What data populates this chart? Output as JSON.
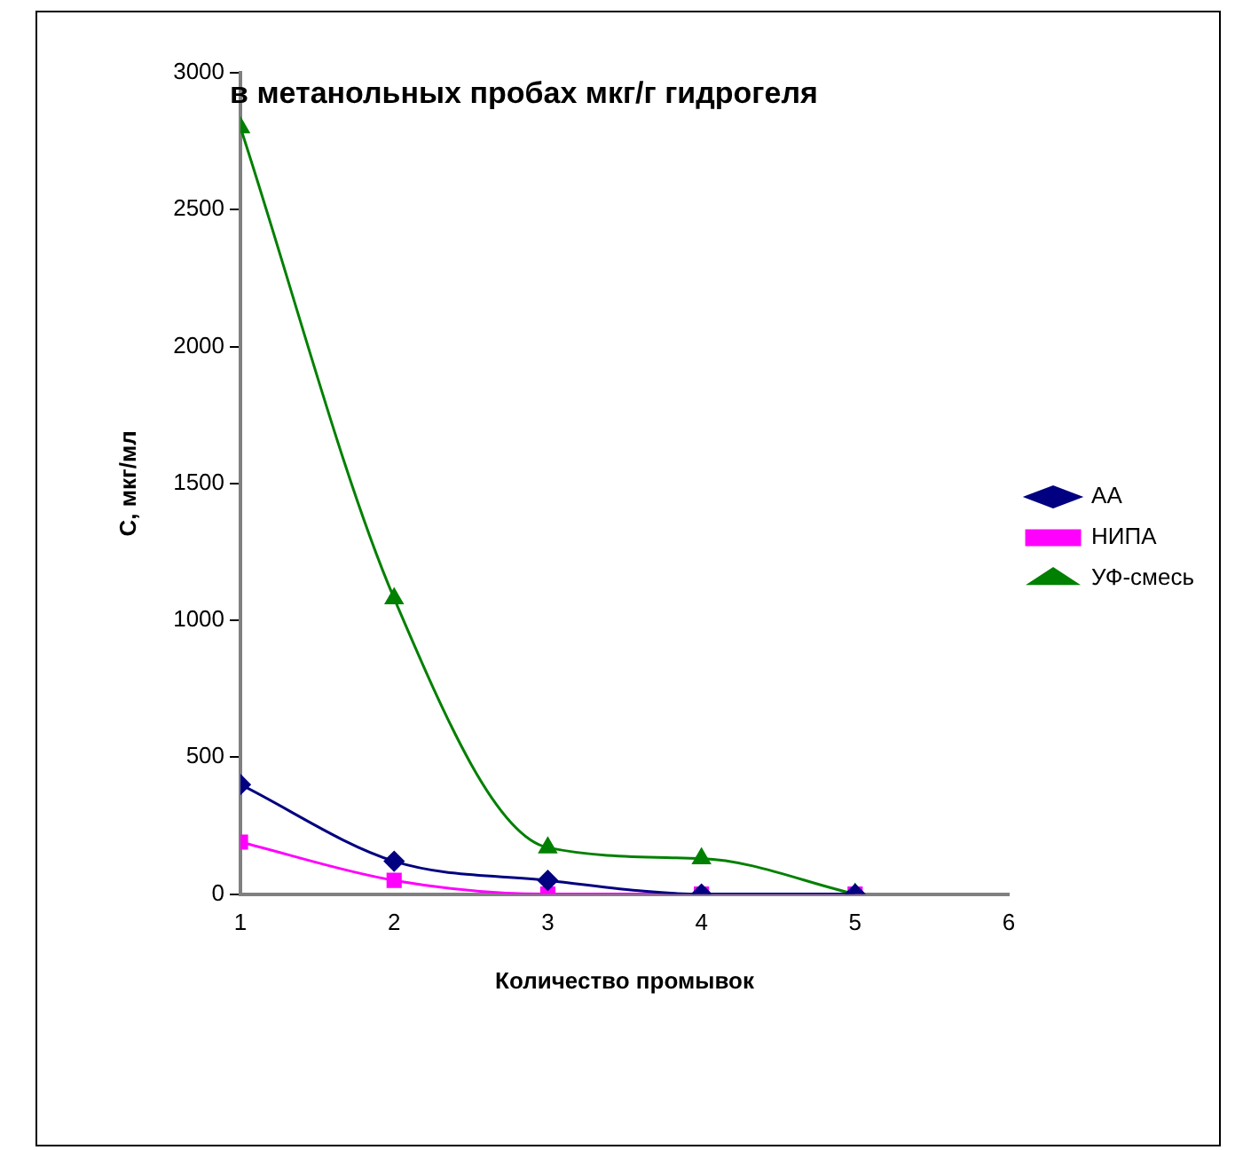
{
  "chart_data": {
    "type": "line",
    "title": "в метанольных пробах мкг/г гидрогеля",
    "xlabel": "Количество промывок",
    "ylabel": "С, мкг/мл",
    "x": [
      1,
      2,
      3,
      4,
      5
    ],
    "series": [
      {
        "name": "АА",
        "color": "#000080",
        "marker": "diamond",
        "values": [
          400,
          120,
          50,
          0,
          0
        ]
      },
      {
        "name": "НИПА",
        "color": "#ff00ff",
        "marker": "square",
        "values": [
          190,
          50,
          0,
          0,
          0
        ]
      },
      {
        "name": "УФ-смесь",
        "color": "#008000",
        "marker": "triangle",
        "values": [
          2800,
          1080,
          170,
          130,
          0
        ]
      }
    ],
    "xlim": [
      1,
      6
    ],
    "xticks": [
      1,
      2,
      3,
      4,
      5,
      6
    ],
    "ylim": [
      0,
      3000
    ],
    "yticks": [
      0,
      500,
      1000,
      1500,
      2000,
      2500,
      3000
    ],
    "grid": false,
    "legend": "right"
  }
}
